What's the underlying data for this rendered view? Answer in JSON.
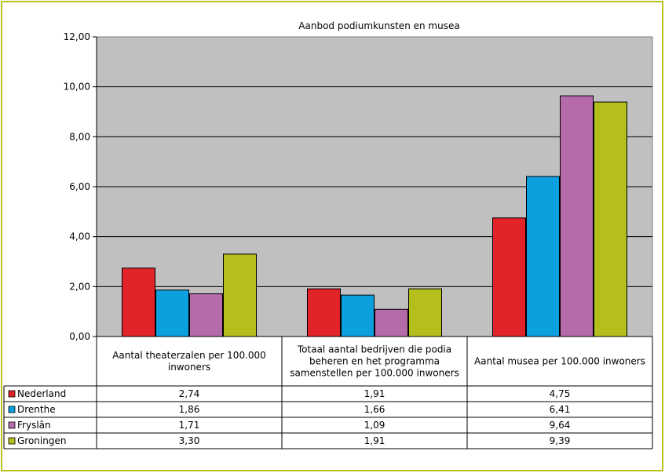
{
  "chart_data": {
    "type": "bar",
    "title": "Aanbod podiumkunsten en musea",
    "xlabel": "",
    "ylabel": "",
    "ylim": [
      0,
      12
    ],
    "yticks": [
      "0,00",
      "2,00",
      "4,00",
      "6,00",
      "8,00",
      "10,00",
      "12,00"
    ],
    "grid": true,
    "legend": "data-table-left",
    "categories": [
      [
        "Aantal theaterzalen per 100.000",
        "inwoners"
      ],
      [
        "Totaal aantal bedrijven die podia",
        "beheren en het programma",
        "samenstellen per 100.000 inwoners"
      ],
      [
        "Aantal musea per 100.000 inwoners"
      ]
    ],
    "series": [
      {
        "name": "Nederland",
        "color": "#e1232a",
        "values": [
          2.74,
          1.91,
          4.75
        ],
        "labels": [
          "2,74",
          "1,91",
          "4,75"
        ]
      },
      {
        "name": "Drenthe",
        "color": "#0da0df",
        "values": [
          1.86,
          1.66,
          6.41
        ],
        "labels": [
          "1,86",
          "1,66",
          "6,41"
        ]
      },
      {
        "name": "Fryslân",
        "color": "#b56aa9",
        "values": [
          1.71,
          1.09,
          9.64
        ],
        "labels": [
          "1,71",
          "1,09",
          "9,64"
        ]
      },
      {
        "name": "Groningen",
        "color": "#b4bf1e",
        "values": [
          3.3,
          1.91,
          9.39
        ],
        "labels": [
          "3,30",
          "1,91",
          "9,39"
        ]
      }
    ]
  }
}
